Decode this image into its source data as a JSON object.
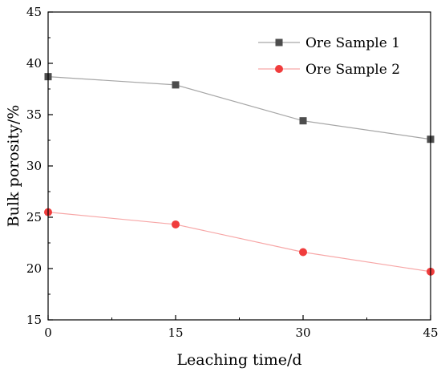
{
  "chart_data": {
    "type": "line",
    "title": "",
    "xlabel": "Leaching time/d",
    "ylabel": "Bulk porosity/%",
    "x": [
      0,
      15,
      30,
      45
    ],
    "xlim": [
      0,
      45
    ],
    "ylim": [
      15,
      45
    ],
    "x_ticks": [
      0,
      15,
      30,
      45
    ],
    "y_ticks": [
      15,
      20,
      25,
      30,
      35,
      40,
      45
    ],
    "grid": false,
    "legend_position": "top-right",
    "series": [
      {
        "name": "Ore Sample 1",
        "values": [
          38.7,
          37.9,
          34.4,
          32.6
        ],
        "color": "#4d4d4d",
        "line_color": "#a6a6a6",
        "marker": "square"
      },
      {
        "name": "Ore Sample 2",
        "values": [
          25.5,
          24.3,
          21.6,
          19.7
        ],
        "color": "#f03c3c",
        "line_color": "#f7a6a6",
        "marker": "circle"
      }
    ]
  }
}
